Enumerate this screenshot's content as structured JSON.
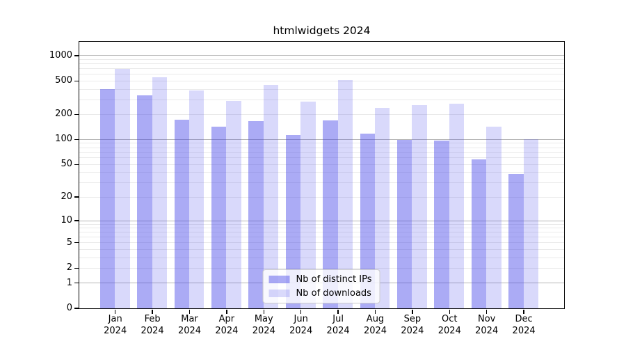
{
  "chart_data": {
    "type": "bar",
    "title": "htmlwidgets 2024",
    "categories": [
      "Jan",
      "Feb",
      "Mar",
      "Apr",
      "May",
      "Jun",
      "Jul",
      "Aug",
      "Sep",
      "Oct",
      "Nov",
      "Dec"
    ],
    "x_tick_year": "2024",
    "series": [
      {
        "name": "Nb of distinct IPs",
        "color": "rgba(63,63,233,0.44)",
        "values": [
          400,
          333,
          172,
          142,
          166,
          113,
          167,
          117,
          99,
          97,
          57,
          38
        ]
      },
      {
        "name": "Nb of downloads",
        "color": "rgba(63,63,233,0.20)",
        "values": [
          685,
          550,
          378,
          286,
          448,
          280,
          505,
          236,
          254,
          266,
          142,
          100
        ]
      }
    ],
    "yscale": "log1p",
    "yticks": [
      1000,
      500,
      200,
      100,
      50,
      20,
      10,
      5,
      2,
      1,
      0
    ],
    "ylim": [
      0,
      1460
    ],
    "grid": {
      "major_lines": [
        1,
        10,
        100,
        1000
      ],
      "minor_multipliers": [
        2,
        3,
        4,
        5,
        6,
        7,
        8,
        9
      ],
      "minor_decades": [
        1,
        10,
        100
      ]
    },
    "legend_position": "lower center"
  },
  "colors": {
    "background": "#ffffff",
    "axis": "#000000",
    "grid_major": "#b4b4b4",
    "grid_minor": "#eaeaea",
    "text": "#000000"
  }
}
